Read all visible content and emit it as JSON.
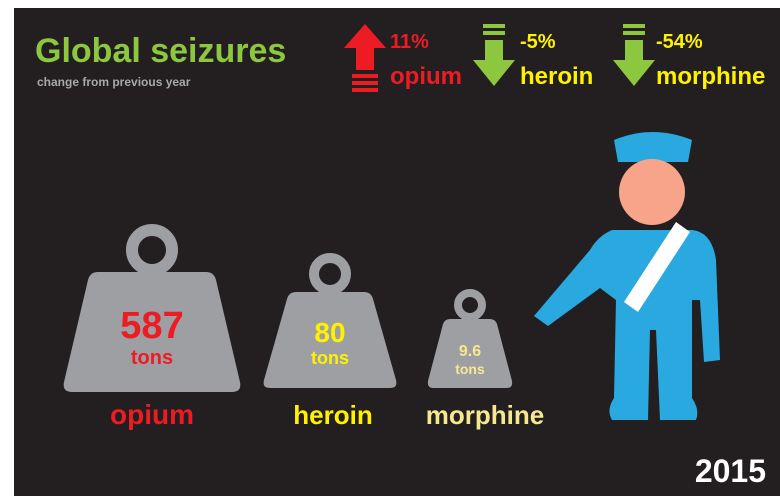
{
  "header": {
    "title": "Global seizures",
    "subtitle": "change from previous year"
  },
  "changes": [
    {
      "change": "11%",
      "drug": "opium"
    },
    {
      "change": "-5%",
      "drug": "heroin"
    },
    {
      "change": "-54%",
      "drug": "morphine"
    }
  ],
  "weights": [
    {
      "amount": 587,
      "unit": "tons",
      "drug": "opium"
    },
    {
      "amount": 80,
      "unit": "tons",
      "drug": "heroin"
    },
    {
      "amount": 9.6,
      "unit": "tons",
      "drug": "morphine"
    }
  ],
  "year": "2015"
}
